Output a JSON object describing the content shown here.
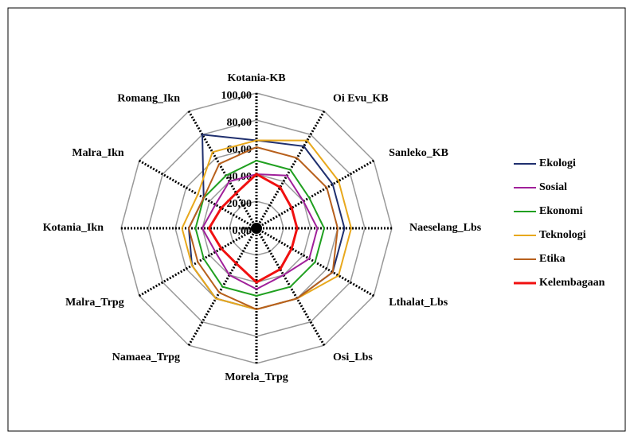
{
  "chart_data": {
    "type": "radar",
    "categories": [
      "Kotania-KB",
      "Oi Evu_KB",
      "Sanleko_KB",
      "Naeselang_Lbs",
      "Lthalat_Lbs",
      "Osi_Lbs",
      "Morela_Trpg",
      "Namaea_Trpg",
      "Malra_Trpg",
      "Kotania_Ikn",
      "Malra_Ikn",
      "Romang_Ikn"
    ],
    "series": [
      {
        "name": "Ekologi",
        "color": "#1f2f6e",
        "values": [
          65,
          70,
          65,
          65,
          65,
          60,
          60,
          60,
          55,
          50,
          45,
          80
        ]
      },
      {
        "name": "Sosial",
        "color": "#a0209a",
        "values": [
          40,
          45,
          40,
          45,
          45,
          40,
          45,
          40,
          35,
          40,
          35,
          40
        ]
      },
      {
        "name": "Ekonomi",
        "color": "#20a020",
        "values": [
          50,
          50,
          45,
          50,
          50,
          50,
          50,
          50,
          45,
          45,
          45,
          45
        ]
      },
      {
        "name": "Teknologi",
        "color": "#e8a81c",
        "values": [
          65,
          75,
          70,
          70,
          70,
          60,
          60,
          60,
          55,
          55,
          50,
          65
        ]
      },
      {
        "name": "Etika",
        "color": "#b8601c",
        "values": [
          60,
          60,
          60,
          60,
          65,
          60,
          60,
          55,
          50,
          50,
          45,
          55
        ]
      },
      {
        "name": "Kelembagaan",
        "color": "#f01010",
        "values": [
          40,
          35,
          30,
          30,
          30,
          35,
          40,
          30,
          30,
          35,
          30,
          30
        ]
      }
    ],
    "ylim": [
      0,
      100
    ],
    "yticks": [
      {
        "value": 0,
        "label": "0,00"
      },
      {
        "value": 20,
        "label": "20,00"
      },
      {
        "value": 40,
        "label": "40,00"
      },
      {
        "value": 60,
        "label": "60,00"
      },
      {
        "value": 80,
        "label": "80,00"
      },
      {
        "value": 100,
        "label": "100,00"
      }
    ],
    "grid": true
  }
}
